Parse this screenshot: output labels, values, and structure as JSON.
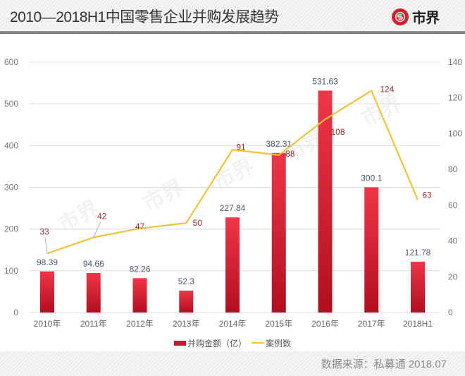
{
  "header": {
    "title": "2010—2018H1中国零售企业并购发展趋势",
    "logo_text": "市界",
    "logo_icon": "brand-s-circle-icon"
  },
  "footer": {
    "source": "数据来源：私募通 2018.07"
  },
  "colors": {
    "bar": "#d8283a",
    "bar_dark": "#b5101f",
    "line": "#f0c33c",
    "grid": "#dcdcdc",
    "brand": "#d3202b"
  },
  "chart_data": {
    "type": "bar",
    "title": "2010—2018H1中国零售企业并购发展趋势",
    "categories": [
      "2010年",
      "2011年",
      "2012年",
      "2013年",
      "2014年",
      "2015年",
      "2016年",
      "2017年",
      "2018H1"
    ],
    "series": [
      {
        "name": "并购金额（亿）",
        "type": "bar",
        "axis": "left",
        "values": [
          98.39,
          94.66,
          82.26,
          52.3,
          227.84,
          382.31,
          531.63,
          300.1,
          121.78
        ],
        "labels": [
          "98.39",
          "94.66",
          "82.26",
          "52.3",
          "227.84",
          "382.31",
          "531.63",
          "300.1",
          "121.78"
        ]
      },
      {
        "name": "案例数",
        "type": "line",
        "axis": "right",
        "values": [
          33,
          42,
          47,
          50,
          91,
          88,
          108,
          124,
          63
        ],
        "labels": [
          "33",
          "42",
          "47",
          "50",
          "91",
          "88",
          "108",
          "124",
          "63"
        ]
      }
    ],
    "left_axis": {
      "min": 0,
      "max": 600,
      "ticks": [
        0,
        100,
        200,
        300,
        400,
        500,
        600
      ]
    },
    "right_axis": {
      "min": 0,
      "max": 140,
      "ticks": [
        0,
        20,
        40,
        60,
        80,
        100,
        120,
        140
      ]
    },
    "xlabel": "",
    "ylabel": "",
    "grid": true,
    "legend": {
      "position": "bottom-center",
      "items": [
        {
          "label": "并购金额（亿）",
          "marker": "bar"
        },
        {
          "label": "案例数",
          "marker": "line"
        }
      ]
    },
    "watermark": "市界"
  }
}
